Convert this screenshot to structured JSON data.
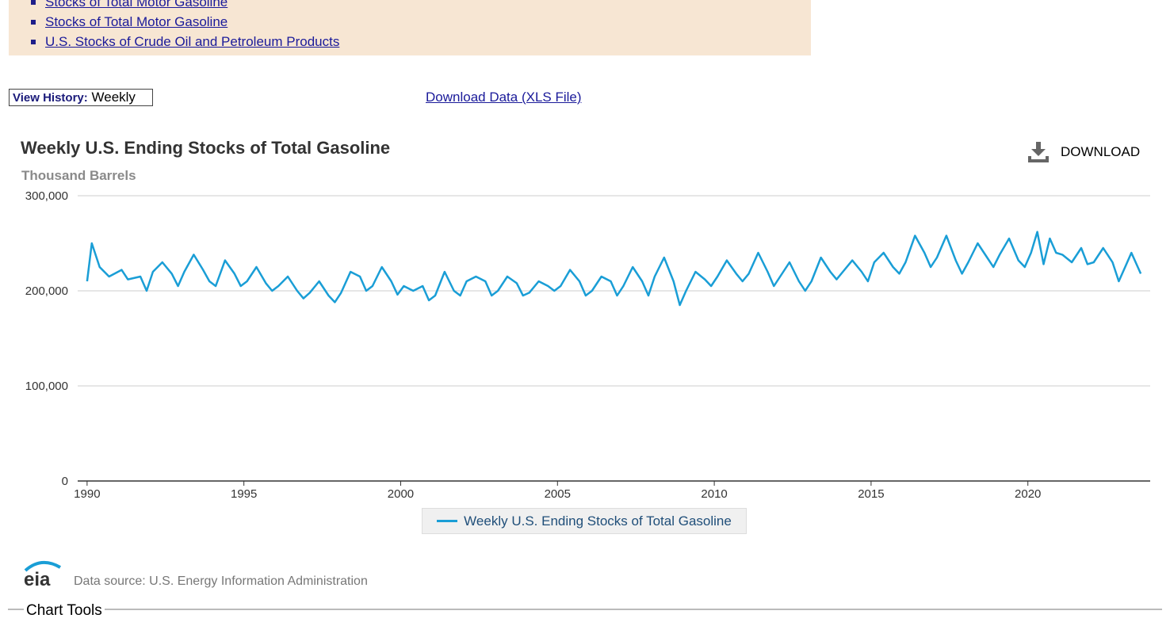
{
  "related_links": [
    "Stocks of Total Motor Gasoline",
    "Stocks of Total Motor Gasoline",
    "U.S. Stocks of Crude Oil and Petroleum Products"
  ],
  "history": {
    "label": "View History:",
    "value": "Weekly"
  },
  "download_data_link": "Download Data (XLS File)",
  "download_button": "DOWNLOAD",
  "legend_label": "Weekly U.S. Ending Stocks of Total Gasoline",
  "logo_text": "eia",
  "data_source": "Data source: U.S. Energy Information Administration",
  "chart_tools": "Chart Tools",
  "colors": {
    "series": "#1a9ed6",
    "related_bg": "#f7e6d3",
    "link": "#1a1a9a"
  },
  "chart_data": {
    "type": "line",
    "title": "Weekly U.S. Ending Stocks of Total Gasoline",
    "ylabel": "Thousand Barrels",
    "xlabel": "",
    "ylim": [
      0,
      300000
    ],
    "xlim": [
      1989.7,
      2023.9
    ],
    "yticks": [
      0,
      100000,
      200000,
      300000
    ],
    "ytick_labels": [
      "0",
      "100,000",
      "200,000",
      "300,000"
    ],
    "xticks": [
      1990,
      1995,
      2000,
      2005,
      2010,
      2015,
      2020
    ],
    "xtick_labels": [
      "1990",
      "1995",
      "2000",
      "2005",
      "2010",
      "2015",
      "2020"
    ],
    "grid": true,
    "legend": "bottom-center",
    "series": [
      {
        "name": "Weekly U.S. Ending Stocks of Total Gasoline",
        "x": [
          1990.0,
          1990.15,
          1990.4,
          1990.7,
          1991.1,
          1991.3,
          1991.7,
          1991.9,
          1992.1,
          1992.4,
          1992.7,
          1992.9,
          1993.1,
          1993.4,
          1993.7,
          1993.9,
          1994.1,
          1994.4,
          1994.7,
          1994.9,
          1995.1,
          1995.4,
          1995.7,
          1995.9,
          1996.1,
          1996.4,
          1996.7,
          1996.9,
          1997.1,
          1997.4,
          1997.7,
          1997.9,
          1998.1,
          1998.4,
          1998.7,
          1998.9,
          1999.1,
          1999.4,
          1999.7,
          1999.9,
          2000.1,
          2000.4,
          2000.7,
          2000.9,
          2001.1,
          2001.4,
          2001.7,
          2001.9,
          2002.1,
          2002.4,
          2002.7,
          2002.9,
          2003.1,
          2003.4,
          2003.7,
          2003.9,
          2004.1,
          2004.4,
          2004.7,
          2004.9,
          2005.1,
          2005.4,
          2005.7,
          2005.9,
          2006.1,
          2006.4,
          2006.7,
          2006.9,
          2007.1,
          2007.4,
          2007.7,
          2007.9,
          2008.1,
          2008.4,
          2008.7,
          2008.9,
          2009.1,
          2009.4,
          2009.7,
          2009.9,
          2010.1,
          2010.4,
          2010.7,
          2010.9,
          2011.1,
          2011.4,
          2011.7,
          2011.9,
          2012.1,
          2012.4,
          2012.7,
          2012.9,
          2013.1,
          2013.4,
          2013.7,
          2013.9,
          2014.1,
          2014.4,
          2014.7,
          2014.9,
          2015.1,
          2015.4,
          2015.7,
          2015.9,
          2016.1,
          2016.4,
          2016.7,
          2016.9,
          2017.1,
          2017.4,
          2017.7,
          2017.9,
          2018.1,
          2018.4,
          2018.7,
          2018.9,
          2019.1,
          2019.4,
          2019.7,
          2019.9,
          2020.1,
          2020.3,
          2020.5,
          2020.7,
          2020.9,
          2021.1,
          2021.4,
          2021.7,
          2021.9,
          2022.1,
          2022.4,
          2022.7,
          2022.9,
          2023.1,
          2023.3,
          2023.6
        ],
        "values": [
          210000,
          250000,
          225000,
          215000,
          222000,
          212000,
          215000,
          200000,
          220000,
          230000,
          218000,
          205000,
          220000,
          238000,
          222000,
          210000,
          205000,
          232000,
          218000,
          205000,
          210000,
          225000,
          208000,
          200000,
          205000,
          215000,
          200000,
          192000,
          198000,
          210000,
          195000,
          188000,
          198000,
          220000,
          215000,
          200000,
          205000,
          225000,
          210000,
          196000,
          205000,
          200000,
          205000,
          190000,
          195000,
          220000,
          200000,
          195000,
          210000,
          215000,
          210000,
          195000,
          200000,
          215000,
          208000,
          195000,
          198000,
          210000,
          205000,
          200000,
          205000,
          222000,
          210000,
          195000,
          200000,
          215000,
          210000,
          195000,
          205000,
          225000,
          210000,
          195000,
          215000,
          235000,
          210000,
          185000,
          200000,
          220000,
          212000,
          205000,
          215000,
          232000,
          218000,
          210000,
          218000,
          240000,
          220000,
          205000,
          215000,
          230000,
          210000,
          200000,
          210000,
          235000,
          220000,
          212000,
          220000,
          232000,
          220000,
          210000,
          230000,
          240000,
          225000,
          218000,
          230000,
          258000,
          240000,
          225000,
          235000,
          258000,
          232000,
          218000,
          230000,
          250000,
          235000,
          225000,
          238000,
          255000,
          232000,
          225000,
          240000,
          262000,
          228000,
          255000,
          240000,
          238000,
          230000,
          245000,
          228000,
          230000,
          245000,
          230000,
          210000,
          225000,
          240000,
          218000
        ]
      }
    ]
  }
}
